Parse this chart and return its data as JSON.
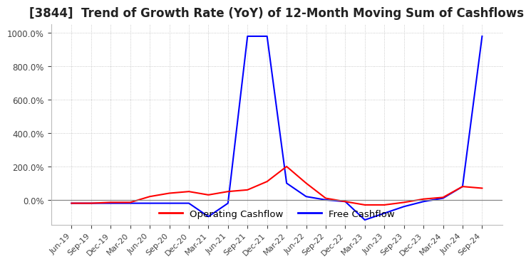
{
  "title": "[3844]  Trend of Growth Rate (YoY) of 12-Month Moving Sum of Cashflows",
  "title_fontsize": 12,
  "ylim": [
    -150,
    1050
  ],
  "yticks": [
    0.0,
    200.0,
    400.0,
    600.0,
    800.0,
    1000.0
  ],
  "background_color": "#ffffff",
  "grid_color": "#bbbbbb",
  "legend_entries": [
    "Operating Cashflow",
    "Free Cashflow"
  ],
  "legend_colors": [
    "#ff0000",
    "#0000ff"
  ],
  "x_labels": [
    "Jun-19",
    "Sep-19",
    "Dec-19",
    "Mar-20",
    "Jun-20",
    "Sep-20",
    "Dec-20",
    "Mar-21",
    "Jun-21",
    "Sep-21",
    "Dec-21",
    "Mar-22",
    "Jun-22",
    "Sep-22",
    "Dec-22",
    "Mar-23",
    "Jun-23",
    "Sep-23",
    "Dec-23",
    "Mar-24",
    "Jun-24",
    "Sep-24"
  ],
  "operating_cashflow": [
    -20,
    -20,
    -15,
    -15,
    20,
    40,
    50,
    30,
    50,
    60,
    110,
    200,
    100,
    10,
    -10,
    -30,
    -30,
    -15,
    5,
    15,
    80,
    70
  ],
  "free_cashflow": [
    -20,
    -20,
    -20,
    -20,
    -20,
    -20,
    -20,
    -100,
    -20,
    980,
    980,
    100,
    20,
    0,
    -10,
    -120,
    -80,
    -40,
    -10,
    10,
    80,
    980
  ]
}
